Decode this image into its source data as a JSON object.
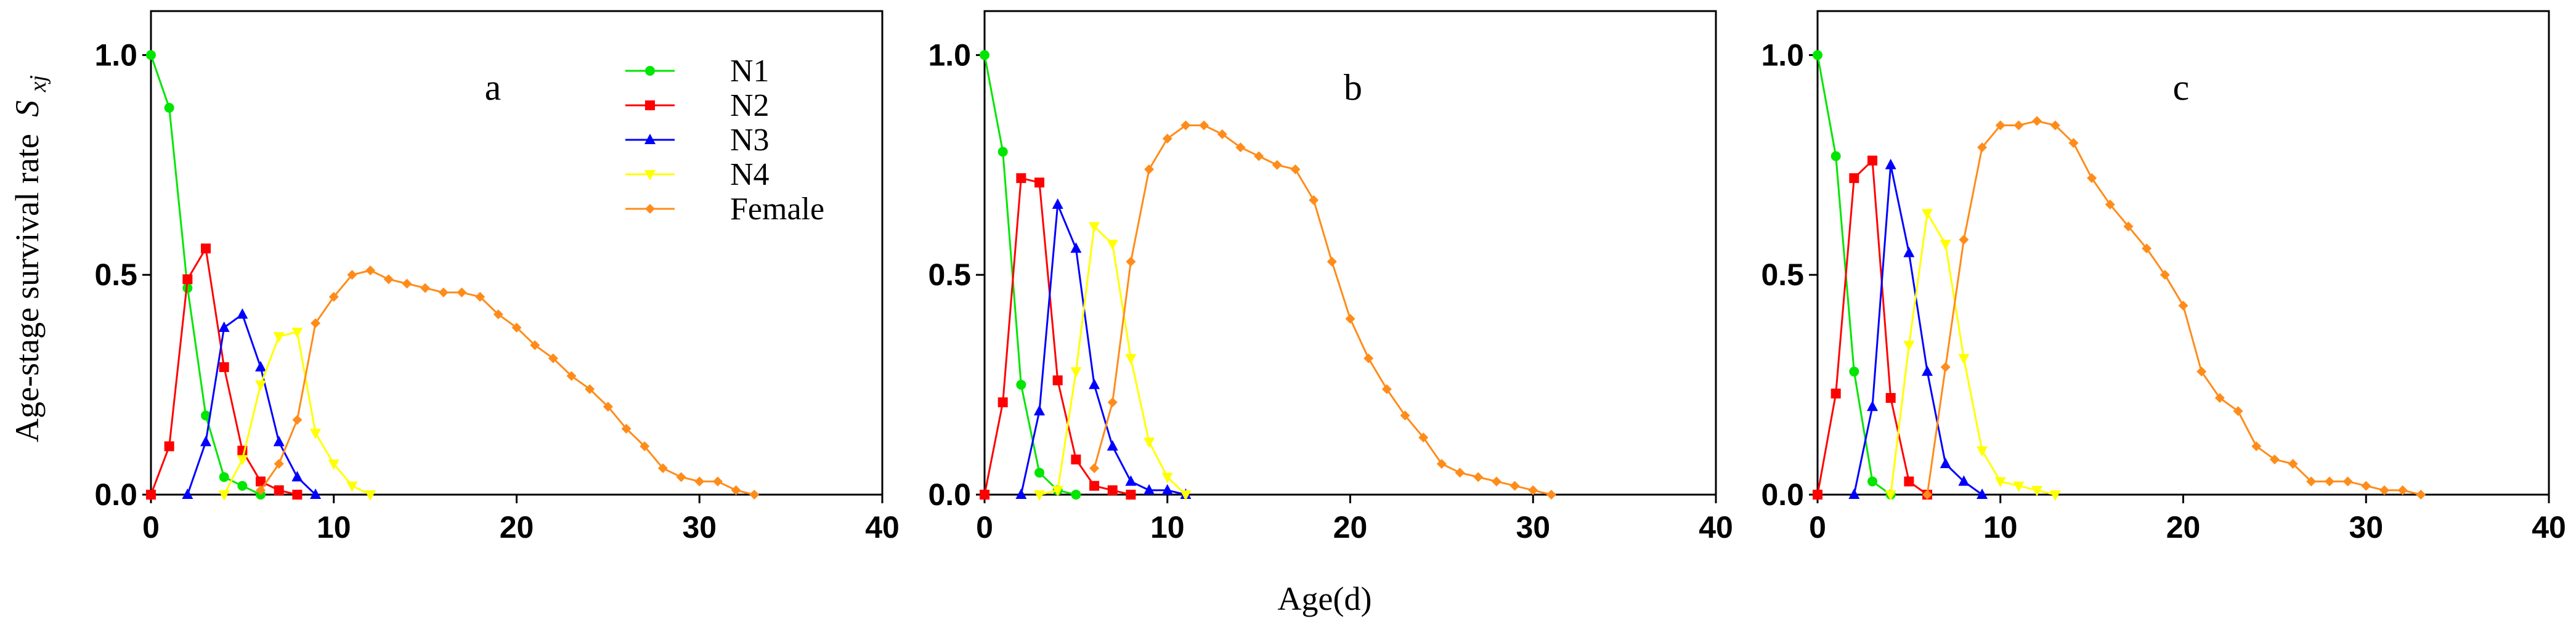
{
  "figure": {
    "y_axis_label": "Age-stage survival rate",
    "y_axis_symbol": "S",
    "y_axis_subscript": "xj",
    "x_axis_label": "Age(d)"
  },
  "chart_data": [
    {
      "type": "line",
      "panel_label": "a",
      "xlim": [
        0,
        40
      ],
      "ylim": [
        0,
        1.1
      ],
      "x_ticks": [
        "0",
        "10",
        "20",
        "30",
        "40"
      ],
      "y_ticks": [
        "0.0",
        "0.5",
        "1.0"
      ],
      "legend": {
        "placement": "top-center",
        "entries": [
          "N1",
          "N2",
          "N3",
          "N4",
          "Female"
        ]
      },
      "series": [
        {
          "name": "N1",
          "color": "#00e600",
          "marker": "circle",
          "x": [
            0,
            1,
            2,
            3,
            4,
            5,
            6
          ],
          "y": [
            1.0,
            0.88,
            0.47,
            0.18,
            0.04,
            0.02,
            0.0
          ]
        },
        {
          "name": "N2",
          "color": "#ff0000",
          "marker": "square",
          "x": [
            0,
            1,
            2,
            3,
            4,
            5,
            6,
            7,
            8
          ],
          "y": [
            0.0,
            0.11,
            0.49,
            0.56,
            0.29,
            0.1,
            0.03,
            0.01,
            0.0
          ]
        },
        {
          "name": "N3",
          "color": "#0000ff",
          "marker": "triangle-up",
          "x": [
            2,
            3,
            4,
            5,
            6,
            7,
            8,
            9
          ],
          "y": [
            0.0,
            0.12,
            0.38,
            0.41,
            0.29,
            0.12,
            0.04,
            0.0
          ]
        },
        {
          "name": "N4",
          "color": "#ffff00",
          "marker": "triangle-down",
          "x": [
            4,
            5,
            6,
            7,
            8,
            9,
            10,
            11,
            12
          ],
          "y": [
            0.0,
            0.08,
            0.25,
            0.36,
            0.37,
            0.14,
            0.07,
            0.02,
            0.0
          ]
        },
        {
          "name": "Female",
          "color": "#ff8c1a",
          "marker": "diamond",
          "x": [
            6,
            7,
            8,
            9,
            10,
            11,
            12,
            13,
            14,
            15,
            16,
            17,
            18,
            19,
            20,
            21,
            22,
            23,
            24,
            25,
            26,
            27,
            28,
            29,
            30,
            31,
            32,
            33
          ],
          "y": [
            0.01,
            0.07,
            0.17,
            0.39,
            0.45,
            0.5,
            0.51,
            0.49,
            0.48,
            0.47,
            0.46,
            0.46,
            0.45,
            0.41,
            0.38,
            0.34,
            0.31,
            0.27,
            0.24,
            0.2,
            0.15,
            0.11,
            0.06,
            0.04,
            0.03,
            0.03,
            0.01,
            0.0
          ]
        }
      ]
    },
    {
      "type": "line",
      "panel_label": "b",
      "xlim": [
        0,
        40
      ],
      "ylim": [
        0,
        1.1
      ],
      "x_ticks": [
        "0",
        "10",
        "20",
        "30",
        "40"
      ],
      "y_ticks": [
        "0.0",
        "0.5",
        "1.0"
      ],
      "series": [
        {
          "name": "N1",
          "color": "#00e600",
          "marker": "circle",
          "x": [
            0,
            1,
            2,
            3,
            4,
            5
          ],
          "y": [
            1.0,
            0.78,
            0.25,
            0.05,
            0.01,
            0.0
          ]
        },
        {
          "name": "N2",
          "color": "#ff0000",
          "marker": "square",
          "x": [
            0,
            1,
            2,
            3,
            4,
            5,
            6,
            7,
            8
          ],
          "y": [
            0.0,
            0.21,
            0.72,
            0.71,
            0.26,
            0.08,
            0.02,
            0.01,
            0.0
          ]
        },
        {
          "name": "N3",
          "color": "#0000ff",
          "marker": "triangle-up",
          "x": [
            2,
            3,
            4,
            5,
            6,
            7,
            8,
            9,
            10,
            11
          ],
          "y": [
            0.0,
            0.19,
            0.66,
            0.56,
            0.25,
            0.11,
            0.03,
            0.01,
            0.01,
            0.0
          ]
        },
        {
          "name": "N4",
          "color": "#ffff00",
          "marker": "triangle-down",
          "x": [
            3,
            4,
            5,
            6,
            7,
            8,
            9,
            10,
            11
          ],
          "y": [
            0.0,
            0.01,
            0.28,
            0.61,
            0.57,
            0.31,
            0.12,
            0.04,
            0.0
          ]
        },
        {
          "name": "Female",
          "color": "#ff8c1a",
          "marker": "diamond",
          "x": [
            6,
            7,
            8,
            9,
            10,
            11,
            12,
            13,
            14,
            15,
            16,
            17,
            18,
            19,
            20,
            21,
            22,
            23,
            24,
            25,
            26,
            27,
            28,
            29,
            30,
            31
          ],
          "y": [
            0.06,
            0.21,
            0.53,
            0.74,
            0.81,
            0.84,
            0.84,
            0.82,
            0.79,
            0.77,
            0.75,
            0.74,
            0.67,
            0.53,
            0.4,
            0.31,
            0.24,
            0.18,
            0.13,
            0.07,
            0.05,
            0.04,
            0.03,
            0.02,
            0.01,
            0.0
          ]
        }
      ]
    },
    {
      "type": "line",
      "panel_label": "c",
      "xlim": [
        0,
        40
      ],
      "ylim": [
        0,
        1.1
      ],
      "x_ticks": [
        "0",
        "10",
        "20",
        "30",
        "40"
      ],
      "y_ticks": [
        "0.0",
        "0.5",
        "1.0"
      ],
      "series": [
        {
          "name": "N1",
          "color": "#00e600",
          "marker": "circle",
          "x": [
            0,
            1,
            2,
            3,
            4
          ],
          "y": [
            1.0,
            0.77,
            0.28,
            0.03,
            0.0
          ]
        },
        {
          "name": "N2",
          "color": "#ff0000",
          "marker": "square",
          "x": [
            0,
            1,
            2,
            3,
            4,
            5,
            6
          ],
          "y": [
            0.0,
            0.23,
            0.72,
            0.76,
            0.22,
            0.03,
            0.0
          ]
        },
        {
          "name": "N3",
          "color": "#0000ff",
          "marker": "triangle-up",
          "x": [
            2,
            3,
            4,
            5,
            6,
            7,
            8,
            9
          ],
          "y": [
            0.0,
            0.2,
            0.75,
            0.55,
            0.28,
            0.07,
            0.03,
            0.0
          ]
        },
        {
          "name": "N4",
          "color": "#ffff00",
          "marker": "triangle-down",
          "x": [
            4,
            5,
            6,
            7,
            8,
            9,
            10,
            11,
            12,
            13
          ],
          "y": [
            0.0,
            0.34,
            0.64,
            0.57,
            0.31,
            0.1,
            0.03,
            0.02,
            0.01,
            0.0
          ]
        },
        {
          "name": "Female",
          "color": "#ff8c1a",
          "marker": "diamond",
          "x": [
            6,
            7,
            8,
            9,
            10,
            11,
            12,
            13,
            14,
            15,
            16,
            17,
            18,
            19,
            20,
            21,
            22,
            23,
            24,
            25,
            26,
            27,
            28,
            29,
            30,
            31,
            32,
            33
          ],
          "y": [
            0.0,
            0.29,
            0.58,
            0.79,
            0.84,
            0.84,
            0.85,
            0.84,
            0.8,
            0.72,
            0.66,
            0.61,
            0.56,
            0.5,
            0.43,
            0.28,
            0.22,
            0.19,
            0.11,
            0.08,
            0.07,
            0.03,
            0.03,
            0.03,
            0.02,
            0.01,
            0.01,
            0.0
          ]
        }
      ]
    }
  ]
}
